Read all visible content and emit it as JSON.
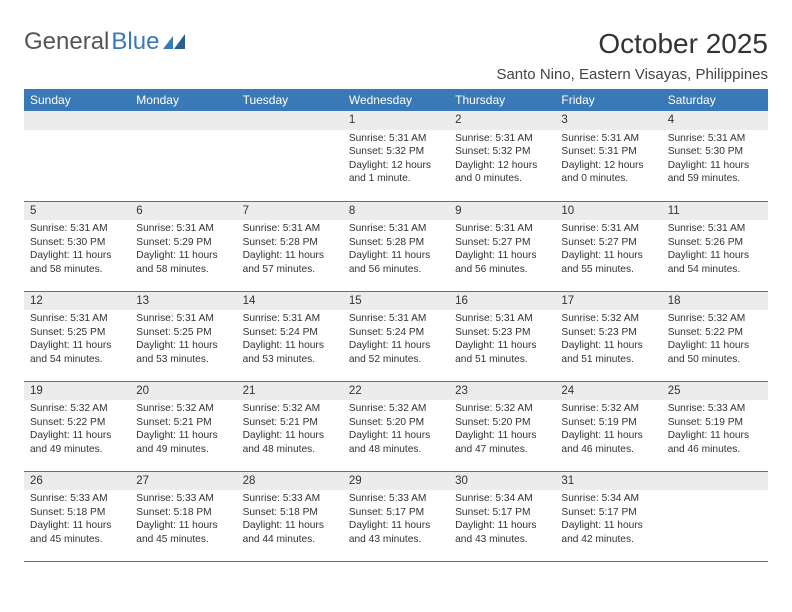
{
  "brand": {
    "text1": "General",
    "text2": "Blue"
  },
  "title": "October 2025",
  "location": "Santo Nino, Eastern Visayas, Philippines",
  "colors": {
    "accent": "#3a79b7",
    "daynum_bg": "#ececec",
    "page_bg": "#ffffff",
    "text": "#333333"
  },
  "days_of_week": [
    "Sunday",
    "Monday",
    "Tuesday",
    "Wednesday",
    "Thursday",
    "Friday",
    "Saturday"
  ],
  "weeks": [
    [
      null,
      null,
      null,
      {
        "n": "1",
        "sr": "5:31 AM",
        "ss": "5:32 PM",
        "dl": "12 hours and 1 minute."
      },
      {
        "n": "2",
        "sr": "5:31 AM",
        "ss": "5:32 PM",
        "dl": "12 hours and 0 minutes."
      },
      {
        "n": "3",
        "sr": "5:31 AM",
        "ss": "5:31 PM",
        "dl": "12 hours and 0 minutes."
      },
      {
        "n": "4",
        "sr": "5:31 AM",
        "ss": "5:30 PM",
        "dl": "11 hours and 59 minutes."
      }
    ],
    [
      {
        "n": "5",
        "sr": "5:31 AM",
        "ss": "5:30 PM",
        "dl": "11 hours and 58 minutes."
      },
      {
        "n": "6",
        "sr": "5:31 AM",
        "ss": "5:29 PM",
        "dl": "11 hours and 58 minutes."
      },
      {
        "n": "7",
        "sr": "5:31 AM",
        "ss": "5:28 PM",
        "dl": "11 hours and 57 minutes."
      },
      {
        "n": "8",
        "sr": "5:31 AM",
        "ss": "5:28 PM",
        "dl": "11 hours and 56 minutes."
      },
      {
        "n": "9",
        "sr": "5:31 AM",
        "ss": "5:27 PM",
        "dl": "11 hours and 56 minutes."
      },
      {
        "n": "10",
        "sr": "5:31 AM",
        "ss": "5:27 PM",
        "dl": "11 hours and 55 minutes."
      },
      {
        "n": "11",
        "sr": "5:31 AM",
        "ss": "5:26 PM",
        "dl": "11 hours and 54 minutes."
      }
    ],
    [
      {
        "n": "12",
        "sr": "5:31 AM",
        "ss": "5:25 PM",
        "dl": "11 hours and 54 minutes."
      },
      {
        "n": "13",
        "sr": "5:31 AM",
        "ss": "5:25 PM",
        "dl": "11 hours and 53 minutes."
      },
      {
        "n": "14",
        "sr": "5:31 AM",
        "ss": "5:24 PM",
        "dl": "11 hours and 53 minutes."
      },
      {
        "n": "15",
        "sr": "5:31 AM",
        "ss": "5:24 PM",
        "dl": "11 hours and 52 minutes."
      },
      {
        "n": "16",
        "sr": "5:31 AM",
        "ss": "5:23 PM",
        "dl": "11 hours and 51 minutes."
      },
      {
        "n": "17",
        "sr": "5:32 AM",
        "ss": "5:23 PM",
        "dl": "11 hours and 51 minutes."
      },
      {
        "n": "18",
        "sr": "5:32 AM",
        "ss": "5:22 PM",
        "dl": "11 hours and 50 minutes."
      }
    ],
    [
      {
        "n": "19",
        "sr": "5:32 AM",
        "ss": "5:22 PM",
        "dl": "11 hours and 49 minutes."
      },
      {
        "n": "20",
        "sr": "5:32 AM",
        "ss": "5:21 PM",
        "dl": "11 hours and 49 minutes."
      },
      {
        "n": "21",
        "sr": "5:32 AM",
        "ss": "5:21 PM",
        "dl": "11 hours and 48 minutes."
      },
      {
        "n": "22",
        "sr": "5:32 AM",
        "ss": "5:20 PM",
        "dl": "11 hours and 48 minutes."
      },
      {
        "n": "23",
        "sr": "5:32 AM",
        "ss": "5:20 PM",
        "dl": "11 hours and 47 minutes."
      },
      {
        "n": "24",
        "sr": "5:32 AM",
        "ss": "5:19 PM",
        "dl": "11 hours and 46 minutes."
      },
      {
        "n": "25",
        "sr": "5:33 AM",
        "ss": "5:19 PM",
        "dl": "11 hours and 46 minutes."
      }
    ],
    [
      {
        "n": "26",
        "sr": "5:33 AM",
        "ss": "5:18 PM",
        "dl": "11 hours and 45 minutes."
      },
      {
        "n": "27",
        "sr": "5:33 AM",
        "ss": "5:18 PM",
        "dl": "11 hours and 45 minutes."
      },
      {
        "n": "28",
        "sr": "5:33 AM",
        "ss": "5:18 PM",
        "dl": "11 hours and 44 minutes."
      },
      {
        "n": "29",
        "sr": "5:33 AM",
        "ss": "5:17 PM",
        "dl": "11 hours and 43 minutes."
      },
      {
        "n": "30",
        "sr": "5:34 AM",
        "ss": "5:17 PM",
        "dl": "11 hours and 43 minutes."
      },
      {
        "n": "31",
        "sr": "5:34 AM",
        "ss": "5:17 PM",
        "dl": "11 hours and 42 minutes."
      },
      null
    ]
  ],
  "labels": {
    "sunrise": "Sunrise:",
    "sunset": "Sunset:",
    "daylight": "Daylight:"
  }
}
